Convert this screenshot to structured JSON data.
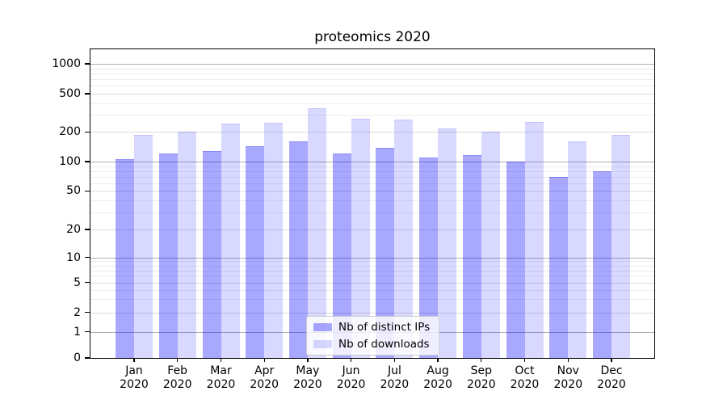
{
  "title": "proteomics 2020",
  "chart_data": {
    "type": "bar",
    "title": "proteomics 2020",
    "months": [
      "Jan",
      "Feb",
      "Mar",
      "Apr",
      "May",
      "Jun",
      "Jul",
      "Aug",
      "Sep",
      "Oct",
      "Nov",
      "Dec"
    ],
    "year_label": "2020",
    "categories": [
      "Jan 2020",
      "Feb 2020",
      "Mar 2020",
      "Apr 2020",
      "May 2020",
      "Jun 2020",
      "Jul 2020",
      "Aug 2020",
      "Sep 2020",
      "Oct 2020",
      "Nov 2020",
      "Dec 2020"
    ],
    "series": [
      {
        "name": "Nb of distinct IPs",
        "color": "#0000ff",
        "alpha": 0.34,
        "values": [
          106,
          120,
          127,
          144,
          160,
          121,
          137,
          109,
          117,
          101,
          70,
          80
        ]
      },
      {
        "name": "Nb of downloads",
        "color": "#0000ff",
        "alpha": 0.15,
        "values": [
          186,
          203,
          243,
          248,
          350,
          272,
          270,
          218,
          203,
          254,
          162,
          186
        ]
      }
    ],
    "y_axis": {
      "scale": "symlog",
      "ticks": [
        0,
        1,
        2,
        5,
        10,
        20,
        50,
        100,
        200,
        500,
        1000
      ],
      "ylim": [
        0,
        1400
      ]
    },
    "grid": true,
    "legend": {
      "position": "lower center",
      "entries": [
        "Nb of distinct IPs",
        "Nb of downloads"
      ]
    },
    "colors": {
      "major_grid": "#b0b0b0",
      "minor_grid": "#ededed",
      "axis": "#000000"
    }
  }
}
